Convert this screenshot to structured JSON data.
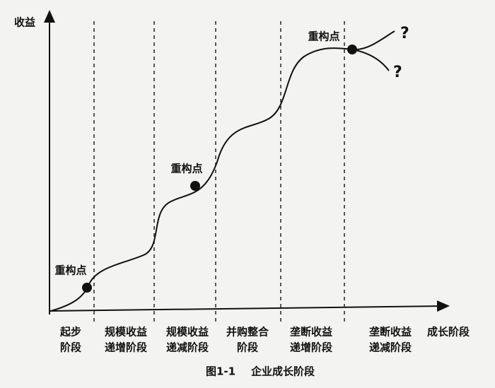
{
  "axes": {
    "y_label": "收益",
    "x_label": "成长阶段"
  },
  "stages": [
    {
      "lines": [
        "起步",
        "阶段"
      ]
    },
    {
      "lines": [
        "规模收益",
        "递增阶段"
      ]
    },
    {
      "lines": [
        "规模收益",
        "递减阶段"
      ]
    },
    {
      "lines": [
        "并购整合",
        "阶段"
      ]
    },
    {
      "lines": [
        "垄断收益",
        "递增阶段"
      ]
    },
    {
      "lines": [
        "垄断收益",
        "递减阶段"
      ]
    }
  ],
  "points": [
    {
      "label": "重构点"
    },
    {
      "label": "重构点"
    },
    {
      "label": "重构点"
    }
  ],
  "questions": [
    "?",
    "?"
  ],
  "caption": {
    "figure": "图1-1",
    "title": "企业成长阶段"
  }
}
